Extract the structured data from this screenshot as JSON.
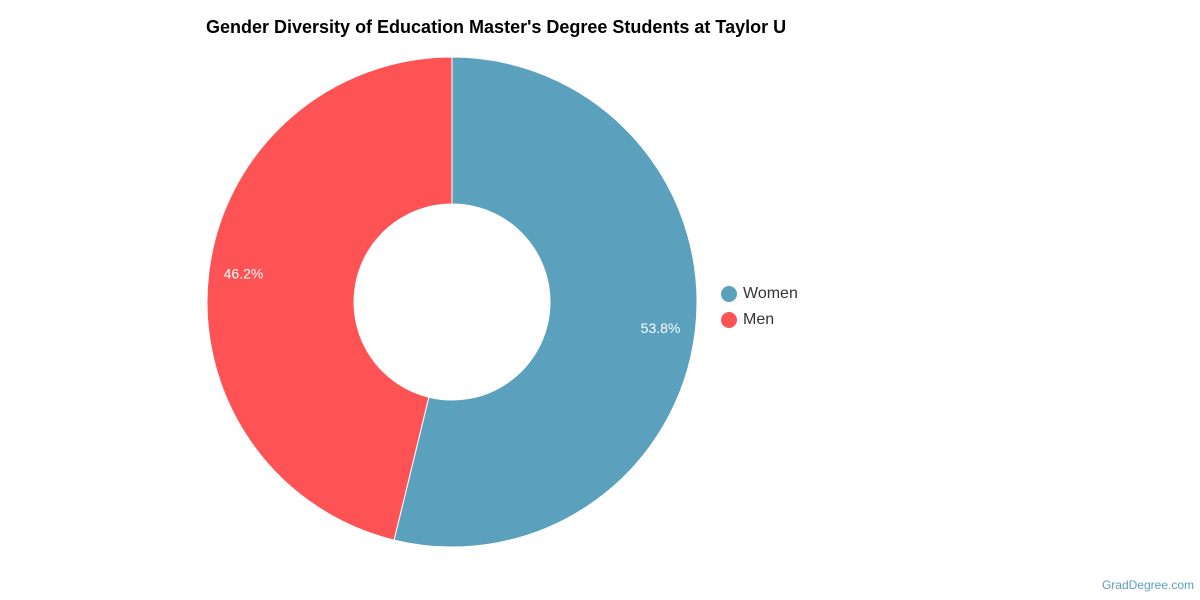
{
  "chart_data": {
    "type": "pie",
    "title": "Gender Diversity of Education Master's Degree Students at Taylor U",
    "series": [
      {
        "name": "Women",
        "value": 53.8,
        "label": "53.8%",
        "color": "#5ba1bd"
      },
      {
        "name": "Men",
        "value": 46.2,
        "label": "46.2%",
        "color": "#fe5355"
      }
    ],
    "legend": {
      "position": "right"
    }
  },
  "watermark": "GradDegree.com"
}
